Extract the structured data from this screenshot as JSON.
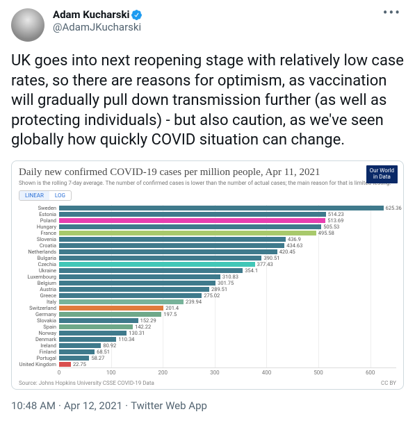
{
  "tweet": {
    "display_name": "Adam Kucharski",
    "handle": "@AdamJKucharski",
    "verified": true,
    "body": "UK goes into next reopening stage with relatively low case rates, so there are reasons for optimism, as vaccination will gradually pull down transmission further (as well as protecting individuals) - but also caution, as we've seen globally how quickly COVID situation can change.",
    "time": "10:48 AM",
    "date": "Apr 12, 2021",
    "source": "Twitter Web App"
  },
  "chart": {
    "title": "Daily new confirmed COVID-19 cases per million people, Apr 11, 2021",
    "subtitle": "Shown is the rolling 7-day average. The number of confirmed cases is lower than the number of actual cases; the main reason for that is limited testing.",
    "badge_line1": "Our World",
    "badge_line2": "in Data",
    "toggle_linear": "LINEAR",
    "toggle_log": "LOG",
    "xmax": 650,
    "ticks": [
      0,
      100,
      200,
      300,
      400,
      500,
      600
    ],
    "bars": [
      {
        "label": "Sweden",
        "value": 625.36,
        "color": "#3f7a8c"
      },
      {
        "label": "Estonia",
        "value": 514.23,
        "color": "#3f7a8c"
      },
      {
        "label": "Poland",
        "value": 513.69,
        "color": "#e73fb0"
      },
      {
        "label": "Hungary",
        "value": 505.53,
        "color": "#3f7a8c"
      },
      {
        "label": "France",
        "value": 495.58,
        "color": "#a8c96b"
      },
      {
        "label": "Slovenia",
        "value": 436.9,
        "color": "#3f7a8c"
      },
      {
        "label": "Croatia",
        "value": 434.63,
        "color": "#3f7a8c"
      },
      {
        "label": "Netherlands",
        "value": 420.45,
        "color": "#3f7a8c"
      },
      {
        "label": "Bulgaria",
        "value": 390.51,
        "color": "#3f7a8c"
      },
      {
        "label": "Czechia",
        "value": 377.43,
        "color": "#41c7b7"
      },
      {
        "label": "Ukraine",
        "value": 354.1,
        "color": "#3f7a8c"
      },
      {
        "label": "Luxembourg",
        "value": 310.83,
        "color": "#3f7a8c"
      },
      {
        "label": "Belgium",
        "value": 301.75,
        "color": "#3f7a8c"
      },
      {
        "label": "Austria",
        "value": 289.51,
        "color": "#3f7a8c"
      },
      {
        "label": "Greece",
        "value": 275.02,
        "color": "#3f7a8c"
      },
      {
        "label": "Italy",
        "value": 239.94,
        "color": "#77b39a"
      },
      {
        "label": "Switzerland",
        "value": 201.4,
        "color": "#e07b3c"
      },
      {
        "label": "Germany",
        "value": 197.5,
        "color": "#6fa889"
      },
      {
        "label": "Slovakia",
        "value": 152.29,
        "color": "#3f7a8c"
      },
      {
        "label": "Spain",
        "value": 142.22,
        "color": "#6fa889"
      },
      {
        "label": "Norway",
        "value": 130.31,
        "color": "#3f7a8c"
      },
      {
        "label": "Denmark",
        "value": 110.34,
        "color": "#3f7a8c"
      },
      {
        "label": "Ireland",
        "value": 80.92,
        "color": "#3f7a8c"
      },
      {
        "label": "Finland",
        "value": 68.51,
        "color": "#3f7a8c"
      },
      {
        "label": "Portugal",
        "value": 58.27,
        "color": "#3f7a8c"
      },
      {
        "label": "United Kingdom",
        "value": 22.75,
        "color": "#d94f4f"
      }
    ],
    "source": "Source: Johns Hopkins University CSSE COVID-19 Data",
    "license": "CC BY"
  }
}
